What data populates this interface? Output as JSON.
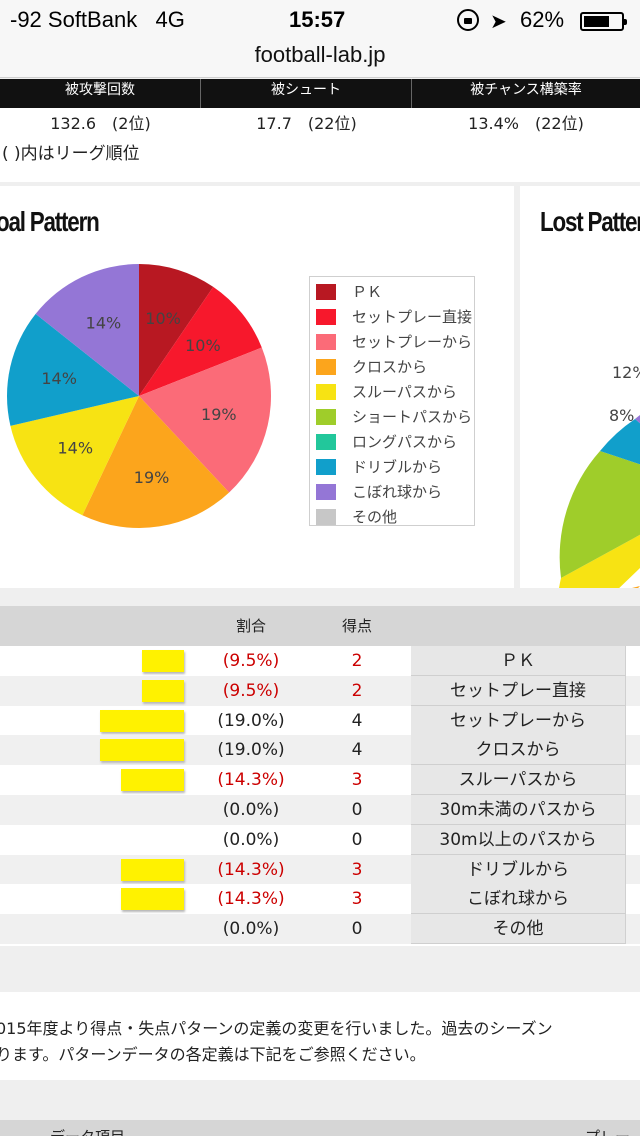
{
  "status_bar": {
    "signal": "-92 SoftBank",
    "network": "4G",
    "time": "15:57",
    "battery": "62%",
    "battery_level": 0.62
  },
  "browser": {
    "url": "football-lab.jp"
  },
  "defense_stats": {
    "headers": [
      "被攻撃回数",
      "被シュート",
      "被チャンス構築率"
    ],
    "values": [
      "132.6　(2位)",
      "17.7　(22位)",
      "13.4%　(22位)"
    ],
    "note": "( )内はリーグ順位"
  },
  "goal_pattern": {
    "title": "oal Pattern",
    "legend": [
      {
        "label": "ＰＫ",
        "color": "#b81822"
      },
      {
        "label": "セットプレー直接",
        "color": "#f7182c"
      },
      {
        "label": "セットプレーから",
        "color": "#fb6b78"
      },
      {
        "label": "クロスから",
        "color": "#fca51c"
      },
      {
        "label": "スルーパスから",
        "color": "#f7e313"
      },
      {
        "label": "ショートパスから",
        "color": "#9fcd2a"
      },
      {
        "label": "ロングパスから",
        "color": "#22c79b"
      },
      {
        "label": "ドリブルから",
        "color": "#119fcb"
      },
      {
        "label": "こぼれ球から",
        "color": "#9476d6"
      },
      {
        "label": "その他",
        "color": "#c7c7c7"
      }
    ]
  },
  "chart_data": [
    {
      "type": "pie",
      "title": "Goal Pattern",
      "labels": [
        "ＰＫ",
        "セットプレー直接",
        "セットプレーから",
        "クロスから",
        "スルーパスから",
        "ショートパスから",
        "ロングパスから",
        "ドリブルから",
        "こぼれ球から",
        "その他"
      ],
      "values": [
        9.5,
        9.5,
        19.0,
        19.0,
        14.3,
        0,
        0,
        14.3,
        14.3,
        0
      ],
      "slice_labels": [
        "10%",
        "10%",
        "19%",
        "19%",
        "14%",
        "",
        "",
        "14%",
        "14%",
        ""
      ],
      "colors": [
        "#b81822",
        "#f7182c",
        "#fb6b78",
        "#fca51c",
        "#f7e313",
        "#9fcd2a",
        "#22c79b",
        "#119fcb",
        "#9476d6",
        "#c7c7c7"
      ],
      "legend": "right"
    },
    {
      "type": "pie",
      "title": "Lost Pattern",
      "visible_labels": [
        "12%",
        "8%"
      ]
    }
  ],
  "lost_pattern": {
    "title": "Lost Pattern",
    "slice_labels": [
      "12%",
      "8%"
    ]
  },
  "pattern_table": {
    "headers": {
      "ratio": "割合",
      "points": "得点"
    },
    "rows": [
      {
        "bar_fraction": 0.5,
        "pct": "(9.5%)",
        "pts": "2",
        "name": "ＰＫ",
        "highlight": true
      },
      {
        "bar_fraction": 0.5,
        "pct": "(9.5%)",
        "pts": "2",
        "name": "セットプレー直接",
        "highlight": true
      },
      {
        "bar_fraction": 1.0,
        "pct": "(19.0%)",
        "pts": "4",
        "name": "セットプレーから",
        "highlight": false
      },
      {
        "bar_fraction": 1.0,
        "pct": "(19.0%)",
        "pts": "4",
        "name": "クロスから",
        "highlight": false
      },
      {
        "bar_fraction": 0.75,
        "pct": "(14.3%)",
        "pts": "3",
        "name": "スルーパスから",
        "highlight": true
      },
      {
        "bar_fraction": 0,
        "pct": "(0.0%)",
        "pts": "0",
        "name": "30m未満のパスから",
        "highlight": false
      },
      {
        "bar_fraction": 0,
        "pct": "(0.0%)",
        "pts": "0",
        "name": "30m以上のパスから",
        "highlight": false
      },
      {
        "bar_fraction": 0.75,
        "pct": "(14.3%)",
        "pts": "3",
        "name": "ドリブルから",
        "highlight": true
      },
      {
        "bar_fraction": 0.75,
        "pct": "(14.3%)",
        "pts": "3",
        "name": "こぼれ球から",
        "highlight": true
      },
      {
        "bar_fraction": 0,
        "pct": "(0.0%)",
        "pts": "0",
        "name": "その他",
        "highlight": false
      }
    ]
  },
  "notes": [
    "015年度より得点・失点パターンの定義の変更を行いました。過去のシーズン",
    "ります。パターンデータの各定義は下記をご参照ください。"
  ],
  "bottom_table": {
    "col1": "データ項目",
    "col2": "プレー"
  }
}
